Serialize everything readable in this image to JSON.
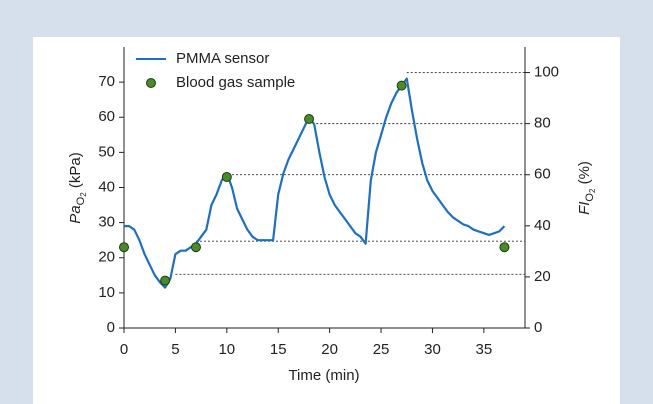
{
  "chart_data": {
    "type": "line",
    "xlabel": "Time (min)",
    "ylabel": [
      "Pa",
      "O",
      "2",
      " (kPa)"
    ],
    "y2label": [
      "FI",
      "O",
      "2",
      " (%)"
    ],
    "xlim": [
      0,
      39
    ],
    "xticks": [
      0,
      5,
      10,
      15,
      20,
      25,
      30,
      35
    ],
    "ylim": [
      0,
      80
    ],
    "yticks": [
      0,
      10,
      20,
      30,
      40,
      50,
      60,
      70
    ],
    "y2lim": [
      0,
      110
    ],
    "y2ticks": [
      0,
      20,
      40,
      60,
      80,
      100
    ],
    "legend": "upper left",
    "series": [
      {
        "name": "PMMA sensor",
        "type": "line",
        "color": "#1f6fbf",
        "x": [
          0,
          0.5,
          1,
          1.5,
          2,
          2.5,
          3,
          3.5,
          4,
          4.5,
          5,
          5.5,
          6,
          6.5,
          7,
          7.5,
          8,
          8.5,
          9,
          9.5,
          10,
          10.5,
          11,
          11.5,
          12,
          12.5,
          13,
          13.5,
          14,
          14.5,
          15,
          15.5,
          16,
          16.5,
          17,
          17.5,
          18,
          18.5,
          19,
          19.5,
          20,
          20.5,
          21,
          21.5,
          22,
          22.5,
          23,
          23.5,
          24,
          24.5,
          25,
          25.5,
          26,
          26.5,
          27,
          27.5,
          28,
          28.5,
          29,
          29.5,
          30,
          30.5,
          31,
          31.5,
          32,
          32.5,
          33,
          33.5,
          34,
          34.5,
          35,
          35.5,
          36,
          36.5,
          37
        ],
        "values": [
          29,
          29,
          28,
          25,
          21,
          18,
          15,
          13,
          11.5,
          14,
          21,
          22,
          22,
          23,
          24,
          26,
          28,
          35,
          38,
          42,
          44,
          40,
          34,
          31,
          28,
          26,
          25,
          25,
          25,
          25,
          38,
          44,
          48,
          51,
          54,
          57,
          60,
          58,
          50,
          43,
          38,
          35,
          33,
          31,
          29,
          27,
          26,
          24,
          42,
          50,
          55,
          60,
          64,
          67,
          69,
          71,
          62,
          54,
          47,
          42,
          39,
          37,
          35,
          33,
          31.5,
          30.5,
          29.5,
          29,
          28,
          27.5,
          27,
          26.5,
          27,
          27.5,
          29
        ]
      },
      {
        "name": "Blood gas sample",
        "type": "scatter",
        "color": "#4a8a2a",
        "x": [
          0,
          4,
          7,
          10,
          18,
          27,
          37
        ],
        "values": [
          23,
          13.5,
          23,
          43,
          59.5,
          69,
          23
        ]
      }
    ],
    "reference_lines": {
      "x_start": [
        5,
        7,
        10.5,
        18.7,
        27.5
      ],
      "y2_values": [
        21,
        34,
        60,
        80,
        100
      ]
    }
  }
}
